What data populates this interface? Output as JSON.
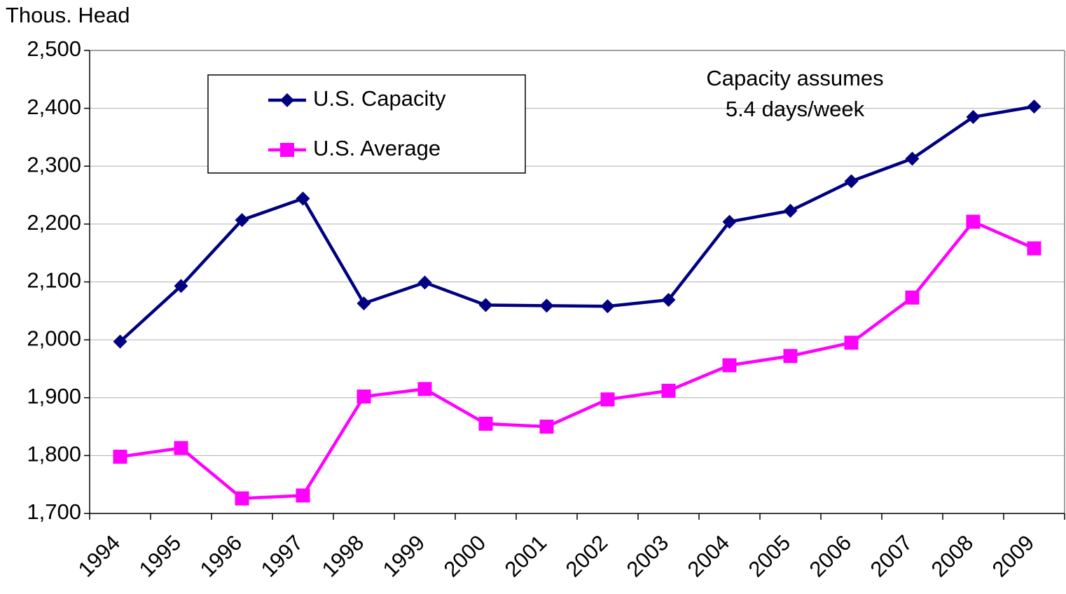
{
  "chart_data": {
    "type": "line",
    "y_label": "Thous. Head",
    "annotation": [
      "Capacity assumes",
      "5.4 days/week"
    ],
    "categories": [
      "1994",
      "1995",
      "1996",
      "1997",
      "1998",
      "1999",
      "2000",
      "2001",
      "2002",
      "2003",
      "2004",
      "2005",
      "2006",
      "2007",
      "2008",
      "2009"
    ],
    "series": [
      {
        "name": "U.S. Capacity",
        "color": "#000080",
        "marker": "diamond",
        "values": [
          1997,
          2093,
          2207,
          2244,
          2063,
          2099,
          2060,
          2059,
          2058,
          2069,
          2204,
          2223,
          2274,
          2313,
          2385,
          2403
        ]
      },
      {
        "name": "U.S. Average",
        "color": "#ff00ff",
        "marker": "square",
        "values": [
          1798,
          1813,
          1726,
          1731,
          1902,
          1915,
          1855,
          1850,
          1897,
          1912,
          1956,
          1972,
          1995,
          2073,
          2204,
          2158
        ]
      }
    ],
    "ylim": [
      1700,
      2500
    ],
    "yticks": [
      {
        "value": 1700,
        "label": "1,700"
      },
      {
        "value": 1800,
        "label": "1,800"
      },
      {
        "value": 1900,
        "label": "1,900"
      },
      {
        "value": 2000,
        "label": "2,000"
      },
      {
        "value": 2100,
        "label": "2,100"
      },
      {
        "value": 2200,
        "label": "2,200"
      },
      {
        "value": 2300,
        "label": "2,300"
      },
      {
        "value": 2400,
        "label": "2,400"
      },
      {
        "value": 2500,
        "label": "2,500"
      }
    ],
    "grid": true,
    "legend": "upper-left"
  }
}
